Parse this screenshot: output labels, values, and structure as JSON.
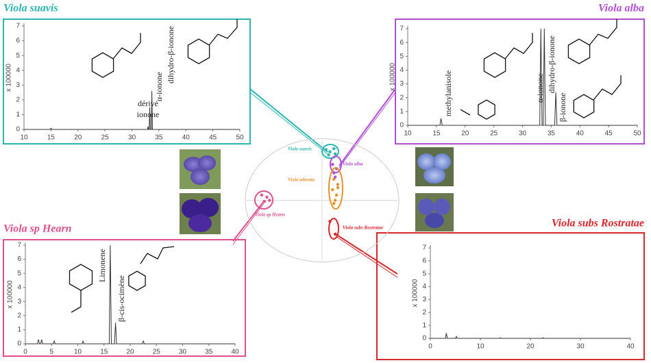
{
  "chart_data": [
    {
      "type": "line",
      "title": "Viola suavis",
      "y_label": "x 100000",
      "color": "#2ab5b0",
      "xlim": [
        10,
        50
      ],
      "xticks": [
        10,
        15,
        20,
        25,
        30,
        35,
        40,
        45,
        50
      ],
      "ylim": [
        0,
        7
      ],
      "yticks": [
        0,
        1,
        2,
        3,
        4,
        5,
        6,
        7
      ],
      "x": [
        10,
        14.8,
        15,
        15.2,
        32.9,
        33.0,
        33.1,
        33.2,
        33.3,
        33.4,
        33.6,
        33.7,
        33.8,
        34.0,
        50
      ],
      "values": [
        0,
        0,
        0.08,
        0,
        0,
        0.2,
        0,
        0,
        1.5,
        0,
        0,
        2.6,
        0,
        0,
        0
      ],
      "annotations": [
        "dérivé",
        "ionone",
        "α-ionone",
        "dihydro-β-ionone"
      ]
    },
    {
      "type": "line",
      "title": "Viola alba",
      "y_label": "x 100000",
      "color": "#b04fd6",
      "xlim": [
        10,
        50
      ],
      "xticks": [
        10,
        15,
        20,
        25,
        30,
        35,
        40,
        45,
        50
      ],
      "ylim": [
        0,
        7
      ],
      "yticks": [
        0,
        1,
        2,
        3,
        4,
        5,
        6,
        7
      ],
      "x": [
        10,
        15.6,
        15.8,
        16.0,
        33.0,
        33.2,
        33.4,
        33.6,
        33.8,
        34.0,
        35.6,
        35.8,
        36.0,
        50
      ],
      "values": [
        0,
        0,
        0.5,
        0,
        0,
        7,
        0,
        0,
        7,
        0,
        0,
        2.4,
        0,
        0
      ],
      "annotations": [
        "methylanisole",
        "α-ionone",
        "dihydro-β-ionone",
        "β-ionone"
      ]
    },
    {
      "type": "line",
      "title": "Viola sp Hearn",
      "y_label": "x 100000",
      "color": "#e0508f",
      "xlim": [
        0,
        40
      ],
      "xticks": [
        0,
        5,
        10,
        15,
        20,
        25,
        30,
        35,
        40
      ],
      "ylim": [
        0,
        7
      ],
      "yticks": [
        0,
        1,
        2,
        3,
        4,
        5,
        6,
        7
      ],
      "x": [
        0,
        2.3,
        2.5,
        2.7,
        2.9,
        3.1,
        3.3,
        5.3,
        5.5,
        5.7,
        10.8,
        11,
        11.2,
        16.0,
        16.2,
        16.4,
        17.0,
        17.2,
        17.4,
        22.3,
        22.5,
        22.7,
        40
      ],
      "values": [
        0,
        0,
        0.3,
        0,
        0,
        0.3,
        0,
        0,
        0.2,
        0,
        0,
        0.2,
        0,
        0,
        7,
        0,
        0,
        1.5,
        0,
        0,
        0.2,
        0,
        0
      ],
      "annotations": [
        "Limonene",
        "β-cis-ocimène"
      ]
    },
    {
      "type": "line",
      "title": "Viola subs Rostratae",
      "y_label": "x 100000",
      "color": "#d9262b",
      "xlim": [
        0,
        40
      ],
      "xticks": [
        0,
        10,
        20,
        30,
        40
      ],
      "ylim": [
        0,
        7
      ],
      "yticks": [
        0,
        1,
        2,
        3,
        4,
        5,
        6,
        7
      ],
      "x": [
        0,
        3.0,
        3.2,
        3.4,
        5.0,
        5.2,
        5.4,
        13.8,
        14,
        14.2,
        22.3,
        22.5,
        22.7,
        40
      ],
      "values": [
        0,
        0,
        0.4,
        0,
        0,
        0.15,
        0,
        0,
        0.05,
        0,
        0,
        0.05,
        0,
        0
      ],
      "annotations": []
    },
    {
      "type": "scatter",
      "xlim": [
        -6,
        6
      ],
      "ylim": [
        -6,
        6
      ],
      "series": [
        {
          "name": "Viola suavis",
          "color": "#2ab5b0",
          "x": [
            0.3,
            0.6,
            0.9,
            0.5,
            1.0
          ],
          "values": [
            4.8,
            4.6,
            4.9,
            4.3,
            4.4
          ]
        },
        {
          "name": "Viola alba",
          "color": "#b04fd6",
          "x": [
            0.8,
            1.1,
            0.9,
            1.0
          ],
          "values": [
            3.4,
            3.0,
            2.6,
            2.2
          ]
        },
        {
          "name": "Viola odorata",
          "color": "#e8902a",
          "x": [
            0.9,
            1.2,
            0.8,
            1.1,
            1.0,
            0.9,
            1.2
          ],
          "values": [
            2.0,
            1.5,
            1.0,
            0.5,
            0.0,
            -0.3,
            1.2
          ]
        },
        {
          "name": "Viola sp Hearn",
          "color": "#e0508f",
          "x": [
            -4.6,
            -4.2,
            -4.4,
            -4.0
          ],
          "values": [
            0.5,
            0.3,
            -0.1,
            0.0
          ]
        },
        {
          "name": "Viola subs Rostratae",
          "color": "#d9262b",
          "x": [
            0.6,
            1.0
          ],
          "values": [
            -2.0,
            -3.2
          ]
        }
      ]
    }
  ]
}
